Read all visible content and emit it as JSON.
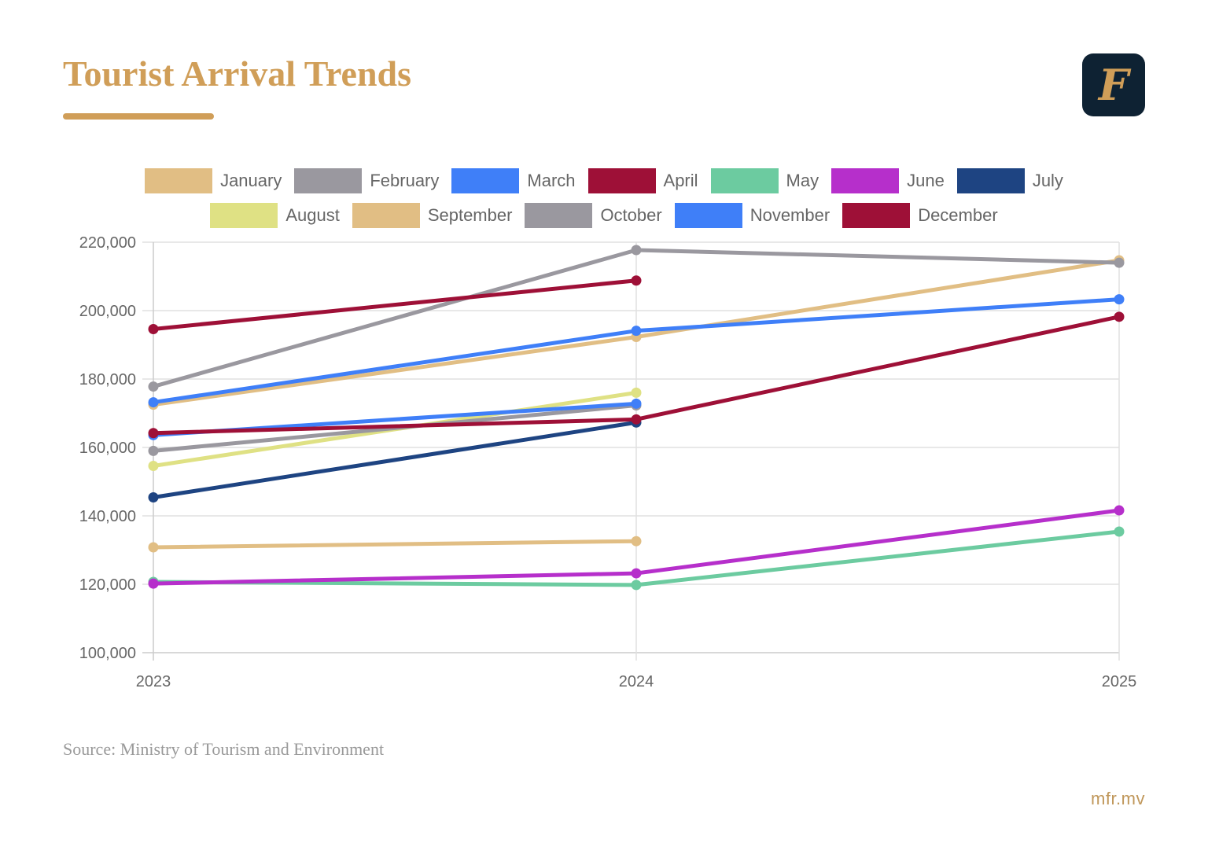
{
  "header": {
    "title": "Tourist Arrival Trends",
    "logo_glyph": "F",
    "logo_name": "mfr-logo"
  },
  "colors": {
    "accent": "#D09E58",
    "logo_bg": "#0E2233",
    "grid": "#E0E0E0",
    "axis_text": "#666666"
  },
  "chart_data": {
    "type": "line",
    "title": "Tourist Arrival Trends",
    "xlabel": "",
    "ylabel": "",
    "x": [
      "2023",
      "2024",
      "2025"
    ],
    "ylim": [
      100000,
      220000
    ],
    "yticks": [
      100000,
      120000,
      140000,
      160000,
      180000,
      200000,
      220000
    ],
    "ytick_labels": [
      "100,000",
      "120,000",
      "140,000",
      "160,000",
      "180,000",
      "200,000",
      "220,000"
    ],
    "grid": true,
    "legend_position": "top-center",
    "series": [
      {
        "name": "January",
        "color": "#E1BE84",
        "values": [
          172500,
          192300,
          214700
        ]
      },
      {
        "name": "February",
        "color": "#9A989F",
        "values": [
          177800,
          217700,
          214000
        ]
      },
      {
        "name": "March",
        "color": "#3F7FF8",
        "values": [
          173200,
          194100,
          203300
        ]
      },
      {
        "name": "April",
        "color": "#9E1037",
        "values": [
          194600,
          208800,
          null
        ]
      },
      {
        "name": "May",
        "color": "#6CCBA0",
        "values": [
          120700,
          119800,
          135400
        ]
      },
      {
        "name": "June",
        "color": "#B62FCB",
        "values": [
          120200,
          123200,
          141600
        ]
      },
      {
        "name": "July",
        "color": "#1E4482",
        "values": [
          145400,
          167300,
          null
        ]
      },
      {
        "name": "August",
        "color": "#DFE184",
        "values": [
          154600,
          176000,
          null
        ]
      },
      {
        "name": "September",
        "color": "#E1BE84",
        "values": [
          130800,
          132600,
          null
        ]
      },
      {
        "name": "October",
        "color": "#9A989F",
        "values": [
          159000,
          172300,
          null
        ]
      },
      {
        "name": "November",
        "color": "#3F7FF8",
        "values": [
          163600,
          172800,
          null
        ]
      },
      {
        "name": "December",
        "color": "#9E1037",
        "values": [
          164200,
          168200,
          198200
        ]
      }
    ]
  },
  "legend": {
    "rows": [
      [
        0,
        1,
        2,
        3,
        4,
        5,
        6
      ],
      [
        7,
        8,
        9,
        10,
        11
      ]
    ]
  },
  "footer": {
    "source": "Source: Ministry of Tourism and Environment",
    "site": "mfr.mv"
  }
}
